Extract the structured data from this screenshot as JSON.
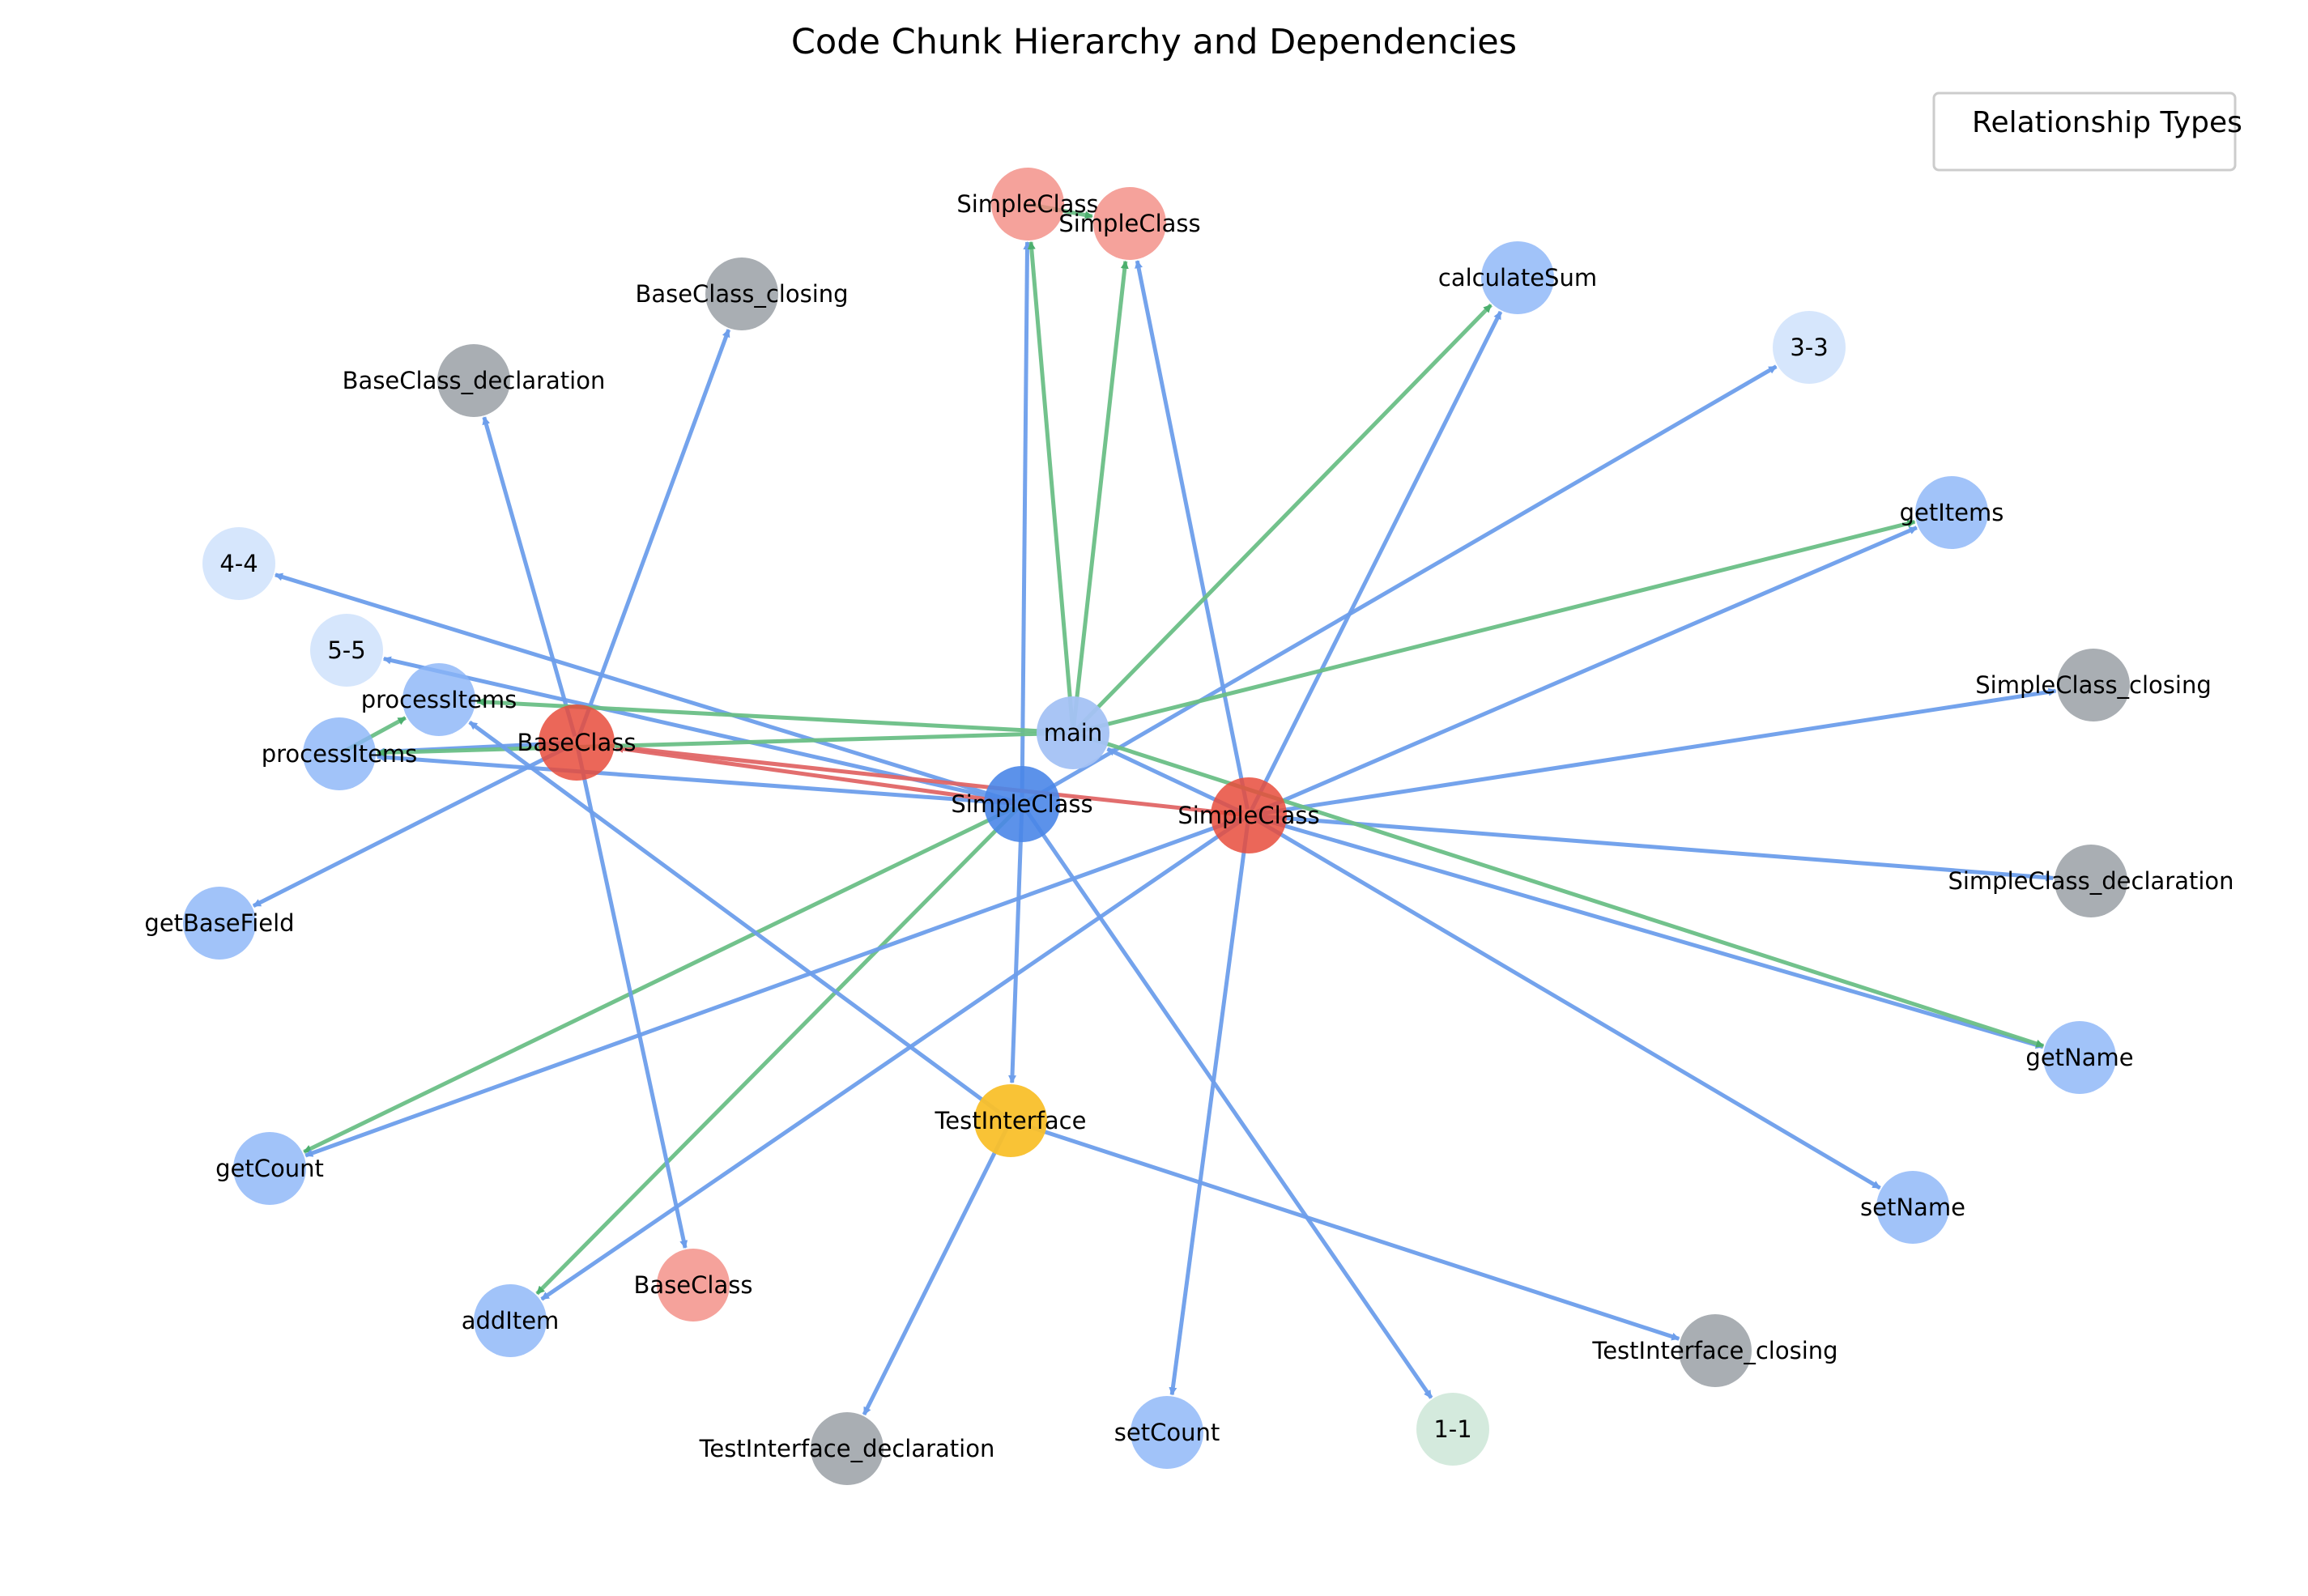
{
  "title": "Code Chunk Hierarchy and Dependencies",
  "legend": {
    "title": "Relationship Types"
  },
  "colors": {
    "blue_edge": "#6d9eeb",
    "green_edge": "#6abf86",
    "red_edge": "#e06666"
  },
  "nodes": [
    {
      "id": "simpleclass_main",
      "label": "SimpleClass",
      "color": "#4a86e8",
      "opacity": 0.9
    },
    {
      "id": "simpleclass_red",
      "label": "SimpleClass",
      "color": "#e74c3c",
      "opacity": 0.85
    },
    {
      "id": "baseclass_red",
      "label": "BaseClass",
      "color": "#e74c3c",
      "opacity": 0.85
    },
    {
      "id": "main",
      "label": "main",
      "color": "#a4c2f4",
      "opacity": 0.95
    },
    {
      "id": "testinterface",
      "label": "TestInterface",
      "color": "#f9c02b",
      "opacity": 0.95
    },
    {
      "id": "simpleclass_top1",
      "label": "SimpleClass",
      "color": "#f28b82",
      "opacity": 0.8
    },
    {
      "id": "simpleclass_top2",
      "label": "SimpleClass",
      "color": "#f28b82",
      "opacity": 0.8
    },
    {
      "id": "baseclass_closing",
      "label": "BaseClass_closing",
      "color": "#9aa0a6",
      "opacity": 0.85
    },
    {
      "id": "baseclass_declaration",
      "label": "BaseClass_declaration",
      "color": "#9aa0a6",
      "opacity": 0.85
    },
    {
      "id": "calculatesum",
      "label": "calculateSum",
      "color": "#8ab4f8",
      "opacity": 0.8
    },
    {
      "id": "n33",
      "label": "3-3",
      "color": "#d2e3fc",
      "opacity": 0.9
    },
    {
      "id": "getitems",
      "label": "getItems",
      "color": "#8ab4f8",
      "opacity": 0.8
    },
    {
      "id": "n44",
      "label": "4-4",
      "color": "#d2e3fc",
      "opacity": 0.9
    },
    {
      "id": "n55",
      "label": "5-5",
      "color": "#d2e3fc",
      "opacity": 0.9
    },
    {
      "id": "processitems1",
      "label": "processItems",
      "color": "#8ab4f8",
      "opacity": 0.8
    },
    {
      "id": "processitems2",
      "label": "processItems",
      "color": "#8ab4f8",
      "opacity": 0.8
    },
    {
      "id": "simpleclass_closing",
      "label": "SimpleClass_closing",
      "color": "#9aa0a6",
      "opacity": 0.85
    },
    {
      "id": "simpleclass_declaration",
      "label": "SimpleClass_declaration",
      "color": "#9aa0a6",
      "opacity": 0.85
    },
    {
      "id": "getbasefield",
      "label": "getBaseField",
      "color": "#8ab4f8",
      "opacity": 0.8
    },
    {
      "id": "getname",
      "label": "getName",
      "color": "#8ab4f8",
      "opacity": 0.8
    },
    {
      "id": "getcount",
      "label": "getCount",
      "color": "#8ab4f8",
      "opacity": 0.8
    },
    {
      "id": "setname",
      "label": "setName",
      "color": "#8ab4f8",
      "opacity": 0.8
    },
    {
      "id": "baseclass_pink",
      "label": "BaseClass",
      "color": "#f28b82",
      "opacity": 0.8
    },
    {
      "id": "additem",
      "label": "addItem",
      "color": "#8ab4f8",
      "opacity": 0.8
    },
    {
      "id": "testinterface_closing",
      "label": "TestInterface_closing",
      "color": "#9aa0a6",
      "opacity": 0.85
    },
    {
      "id": "testinterface_declaration",
      "label": "TestInterface_declaration",
      "color": "#9aa0a6",
      "opacity": 0.85
    },
    {
      "id": "setcount",
      "label": "setCount",
      "color": "#8ab4f8",
      "opacity": 0.8
    },
    {
      "id": "n11",
      "label": "1-1",
      "color": "#cfe8d9",
      "opacity": 0.9
    }
  ],
  "edges": [
    {
      "from": "simpleclass_main",
      "to": "testinterface",
      "type": "blue"
    },
    {
      "from": "simpleclass_main",
      "to": "n11",
      "type": "blue"
    },
    {
      "from": "simpleclass_main",
      "to": "n44",
      "type": "blue"
    },
    {
      "from": "simpleclass_main",
      "to": "n55",
      "type": "blue"
    },
    {
      "from": "simpleclass_main",
      "to": "processitems2",
      "type": "blue"
    },
    {
      "from": "simpleclass_main",
      "to": "n33",
      "type": "blue"
    },
    {
      "from": "simpleclass_main",
      "to": "simpleclass_top1",
      "type": "blue"
    },
    {
      "from": "simpleclass_main",
      "to": "getcount",
      "type": "green"
    },
    {
      "from": "simpleclass_main",
      "to": "additem",
      "type": "green"
    },
    {
      "from": "simpleclass_main",
      "to": "baseclass_red",
      "type": "red"
    },
    {
      "from": "simpleclass_red",
      "to": "simpleclass_top2",
      "type": "blue"
    },
    {
      "from": "simpleclass_red",
      "to": "calculatesum",
      "type": "blue"
    },
    {
      "from": "simpleclass_red",
      "to": "getitems",
      "type": "blue"
    },
    {
      "from": "simpleclass_red",
      "to": "simpleclass_closing",
      "type": "blue"
    },
    {
      "from": "simpleclass_red",
      "to": "simpleclass_declaration",
      "type": "blue"
    },
    {
      "from": "simpleclass_red",
      "to": "getname",
      "type": "blue"
    },
    {
      "from": "simpleclass_red",
      "to": "setname",
      "type": "blue"
    },
    {
      "from": "simpleclass_red",
      "to": "setcount",
      "type": "blue"
    },
    {
      "from": "simpleclass_red",
      "to": "additem",
      "type": "blue"
    },
    {
      "from": "simpleclass_red",
      "to": "getcount",
      "type": "blue"
    },
    {
      "from": "simpleclass_red",
      "to": "main",
      "type": "blue"
    },
    {
      "from": "simpleclass_red",
      "to": "baseclass_red",
      "type": "red"
    },
    {
      "from": "baseclass_red",
      "to": "baseclass_declaration",
      "type": "blue"
    },
    {
      "from": "baseclass_red",
      "to": "baseclass_closing",
      "type": "blue"
    },
    {
      "from": "baseclass_red",
      "to": "getbasefield",
      "type": "blue"
    },
    {
      "from": "baseclass_red",
      "to": "baseclass_pink",
      "type": "blue"
    },
    {
      "from": "baseclass_red",
      "to": "processitems2",
      "type": "blue"
    },
    {
      "from": "main",
      "to": "simpleclass_top1",
      "type": "green"
    },
    {
      "from": "main",
      "to": "simpleclass_top2",
      "type": "green"
    },
    {
      "from": "main",
      "to": "calculatesum",
      "type": "green"
    },
    {
      "from": "main",
      "to": "getitems",
      "type": "green"
    },
    {
      "from": "main",
      "to": "getname",
      "type": "green"
    },
    {
      "from": "main",
      "to": "processitems1",
      "type": "green"
    },
    {
      "from": "main",
      "to": "processitems2",
      "type": "green"
    },
    {
      "from": "testinterface",
      "to": "testinterface_declaration",
      "type": "blue"
    },
    {
      "from": "testinterface",
      "to": "testinterface_closing",
      "type": "blue"
    },
    {
      "from": "testinterface",
      "to": "processitems1",
      "type": "blue"
    },
    {
      "from": "simpleclass_top1",
      "to": "simpleclass_top2",
      "type": "green"
    },
    {
      "from": "processitems2",
      "to": "processitems1",
      "type": "green"
    }
  ]
}
